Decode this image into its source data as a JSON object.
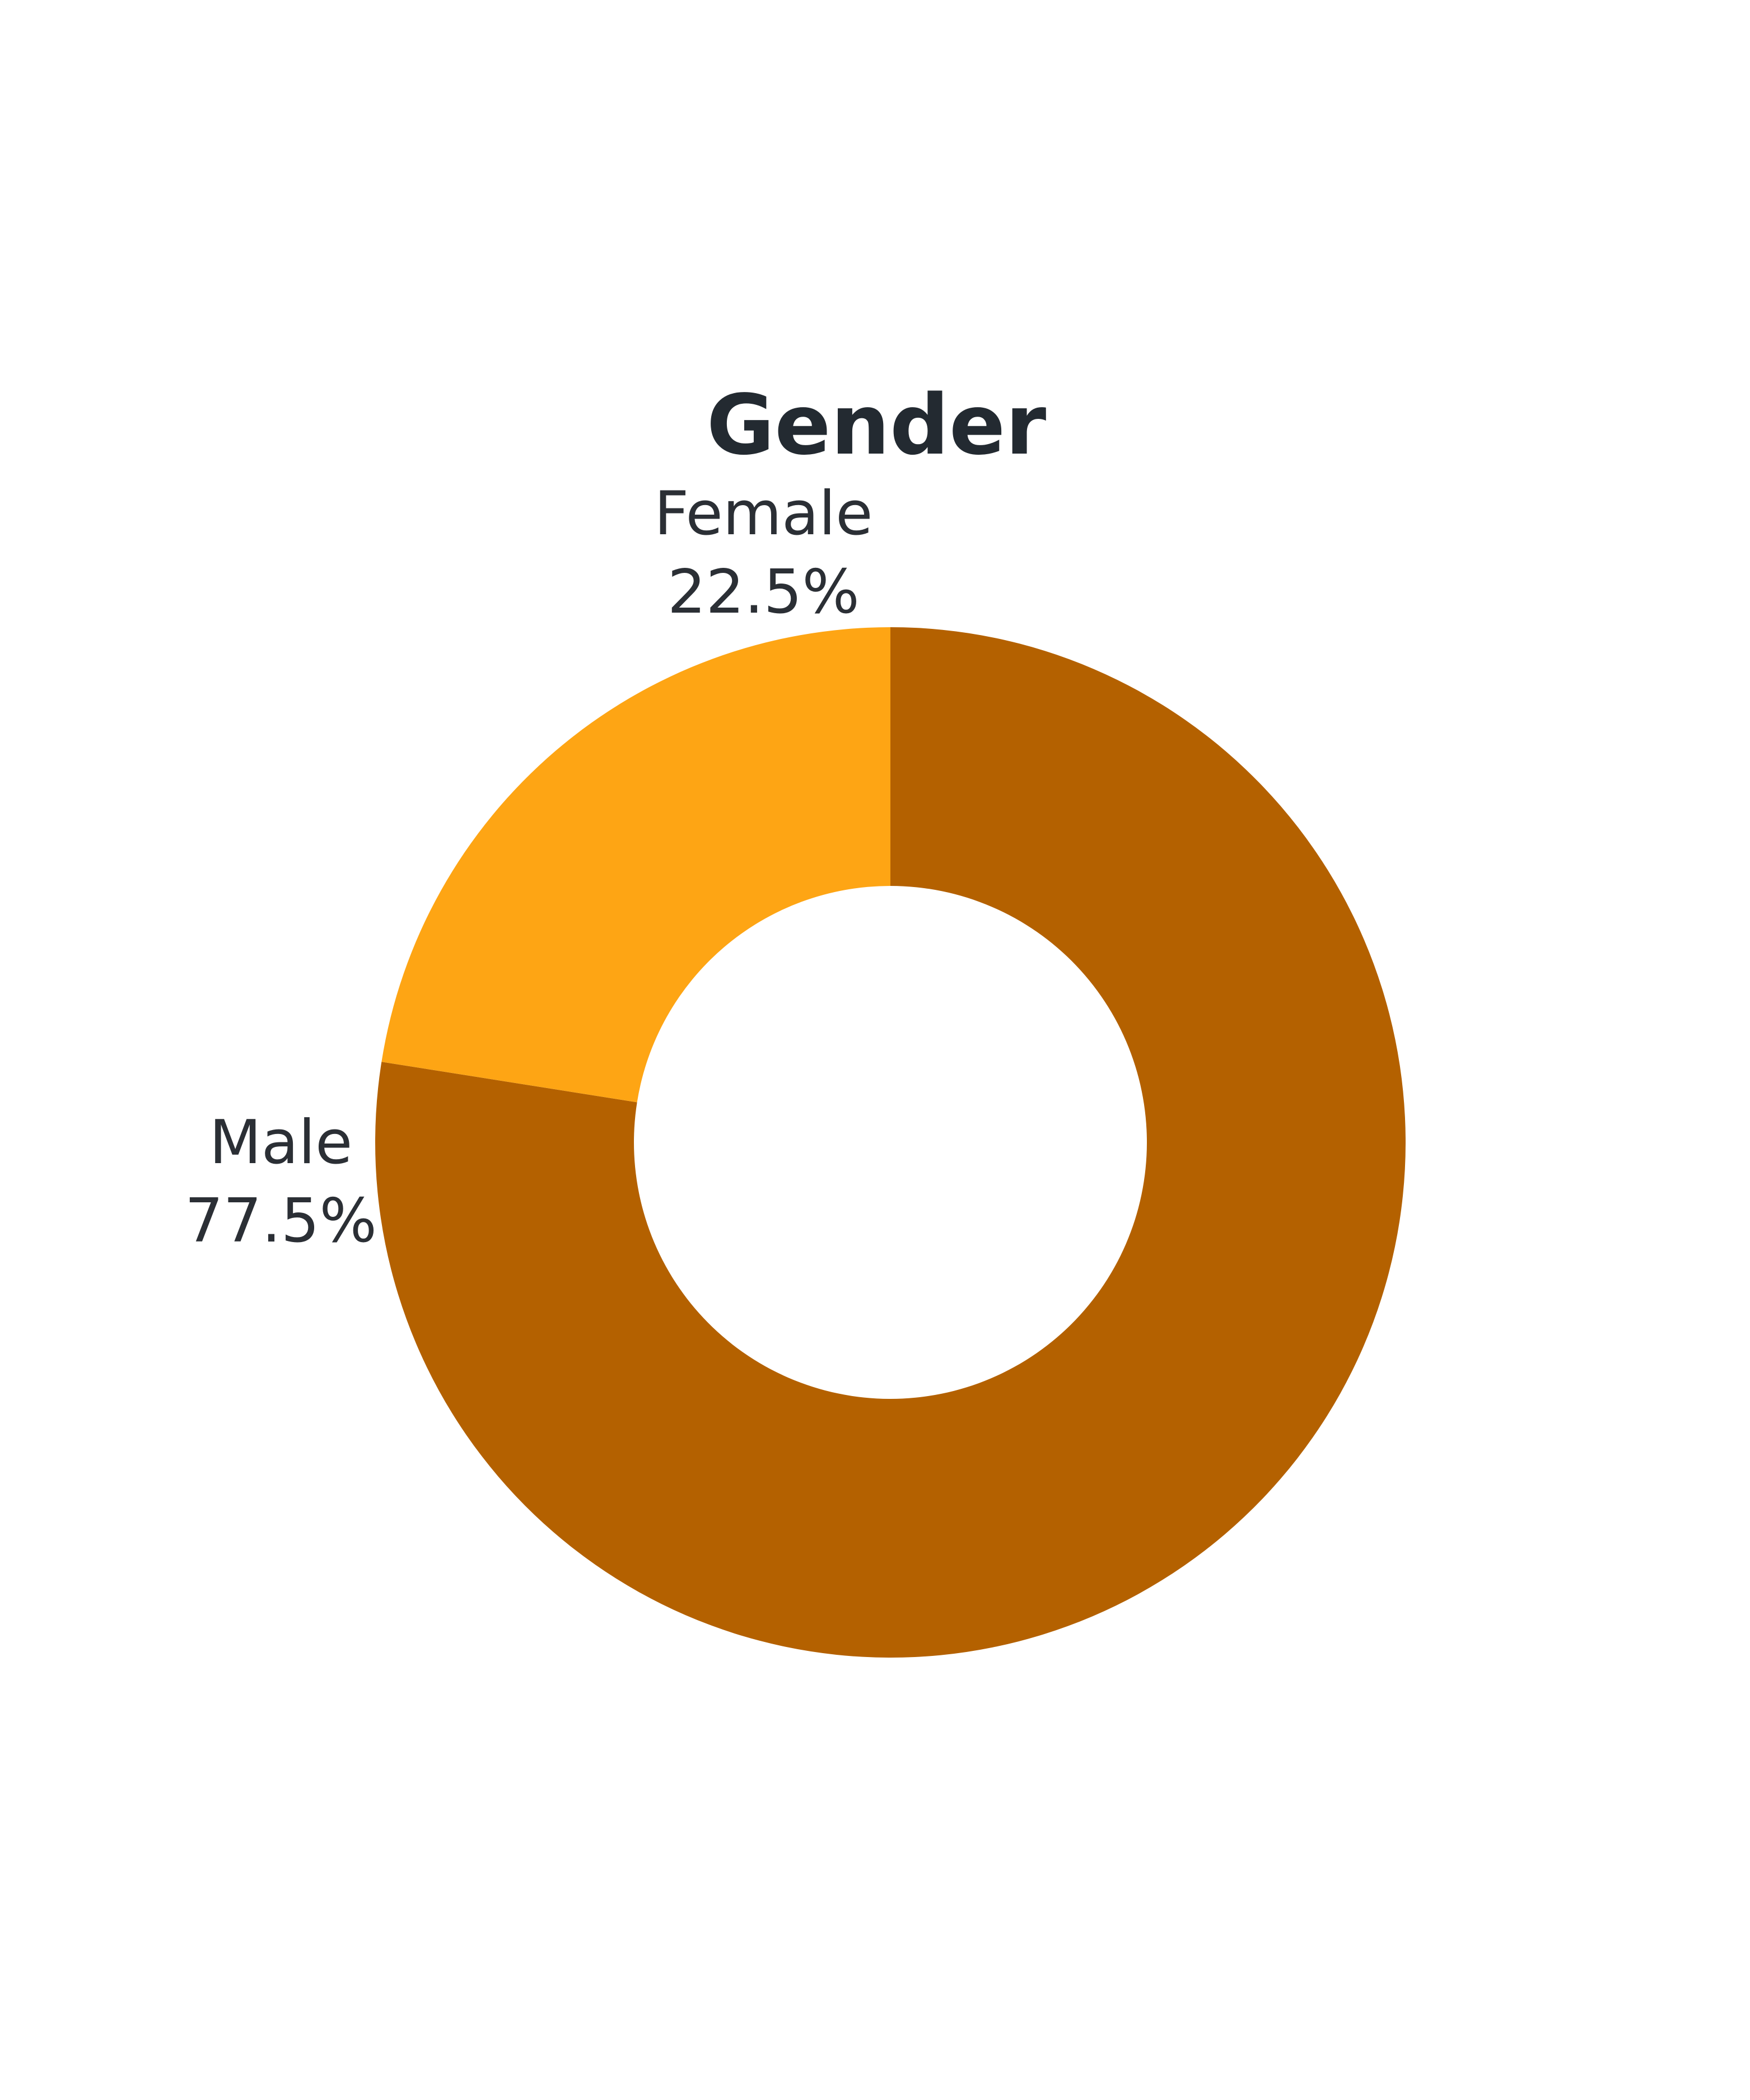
{
  "chart_data": {
    "type": "pie",
    "title": "Gender",
    "donut": true,
    "slices": [
      {
        "label": "Male",
        "value": 77.5,
        "display": "77.5%",
        "color": "#b46100"
      },
      {
        "label": "Female",
        "value": 22.5,
        "display": "22.5%",
        "color": "#fea514"
      }
    ]
  }
}
